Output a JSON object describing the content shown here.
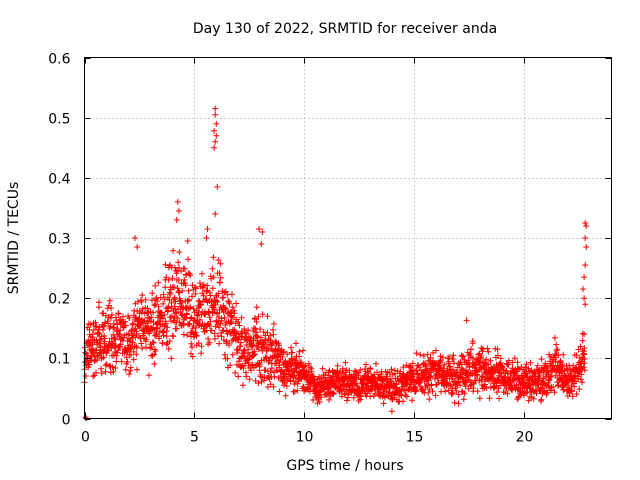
{
  "chart_data": {
    "type": "scatter",
    "title": "Day 130 of 2022, SRMTID for receiver anda",
    "xlabel": "GPS time / hours",
    "ylabel": "SRMTID / TECUs",
    "xlim": [
      0,
      24
    ],
    "ylim": [
      0,
      0.6
    ],
    "xticks": [
      0,
      5,
      10,
      15,
      20
    ],
    "xtick_labels": [
      "0",
      "5",
      "10",
      "15",
      "20"
    ],
    "yticks": [
      0,
      0.1,
      0.2,
      0.3,
      0.4,
      0.5,
      0.6
    ],
    "ytick_labels": [
      "0",
      "0.1",
      "0.2",
      "0.3",
      "0.4",
      "0.5",
      "0.6"
    ],
    "grid": true,
    "marker": "+",
    "series_color": "#ff0000",
    "envelope_hours": [
      0,
      0.5,
      1,
      1.5,
      2,
      2.5,
      3,
      3.5,
      4,
      4.5,
      5,
      5.5,
      6,
      6.5,
      7,
      7.5,
      8,
      8.5,
      9,
      9.5,
      10,
      10.5,
      11,
      11.5,
      12,
      12.5,
      13,
      13.5,
      14,
      14.5,
      15,
      15.5,
      16,
      16.5,
      17,
      17.5,
      18,
      18.5,
      19,
      19.5,
      20,
      20.5,
      21,
      21.5,
      22,
      22.5,
      22.8
    ],
    "envelope_median": [
      0.11,
      0.12,
      0.13,
      0.13,
      0.12,
      0.16,
      0.15,
      0.17,
      0.19,
      0.2,
      0.17,
      0.18,
      0.2,
      0.16,
      0.12,
      0.11,
      0.13,
      0.11,
      0.09,
      0.08,
      0.08,
      0.05,
      0.06,
      0.06,
      0.06,
      0.05,
      0.06,
      0.06,
      0.05,
      0.06,
      0.07,
      0.07,
      0.08,
      0.07,
      0.07,
      0.08,
      0.08,
      0.08,
      0.07,
      0.07,
      0.06,
      0.06,
      0.07,
      0.09,
      0.06,
      0.08,
      0.1
    ],
    "envelope_spread": [
      0.04,
      0.05,
      0.05,
      0.05,
      0.05,
      0.06,
      0.06,
      0.06,
      0.07,
      0.07,
      0.06,
      0.06,
      0.07,
      0.06,
      0.05,
      0.05,
      0.06,
      0.05,
      0.04,
      0.03,
      0.03,
      0.02,
      0.025,
      0.025,
      0.025,
      0.025,
      0.025,
      0.025,
      0.025,
      0.025,
      0.03,
      0.03,
      0.035,
      0.03,
      0.035,
      0.035,
      0.035,
      0.035,
      0.03,
      0.03,
      0.025,
      0.025,
      0.03,
      0.035,
      0.025,
      0.03,
      0.04
    ],
    "peak_points": [
      {
        "x": 5.95,
        "y": 0.515
      },
      {
        "x": 5.95,
        "y": 0.505
      },
      {
        "x": 6.0,
        "y": 0.49
      },
      {
        "x": 5.9,
        "y": 0.478
      },
      {
        "x": 6.0,
        "y": 0.47
      },
      {
        "x": 5.95,
        "y": 0.46
      },
      {
        "x": 5.9,
        "y": 0.45
      },
      {
        "x": 6.05,
        "y": 0.385
      },
      {
        "x": 5.95,
        "y": 0.34
      },
      {
        "x": 4.25,
        "y": 0.36
      },
      {
        "x": 4.3,
        "y": 0.345
      },
      {
        "x": 4.2,
        "y": 0.33
      },
      {
        "x": 7.95,
        "y": 0.315
      },
      {
        "x": 8.1,
        "y": 0.31
      },
      {
        "x": 8.05,
        "y": 0.29
      },
      {
        "x": 2.3,
        "y": 0.3
      },
      {
        "x": 2.4,
        "y": 0.285
      },
      {
        "x": 4.7,
        "y": 0.295
      },
      {
        "x": 5.6,
        "y": 0.315
      },
      {
        "x": 5.55,
        "y": 0.3
      },
      {
        "x": 22.8,
        "y": 0.325
      },
      {
        "x": 22.85,
        "y": 0.32
      },
      {
        "x": 22.8,
        "y": 0.3
      },
      {
        "x": 22.85,
        "y": 0.285
      },
      {
        "x": 22.8,
        "y": 0.255
      },
      {
        "x": 22.75,
        "y": 0.235
      },
      {
        "x": 22.7,
        "y": 0.215
      },
      {
        "x": 22.75,
        "y": 0.2
      },
      {
        "x": 22.8,
        "y": 0.19
      },
      {
        "x": 22.75,
        "y": 0.14
      },
      {
        "x": 17.4,
        "y": 0.163
      },
      {
        "x": 0.05,
        "y": 0.002
      },
      {
        "x": 0.08,
        "y": 0.0
      }
    ]
  }
}
